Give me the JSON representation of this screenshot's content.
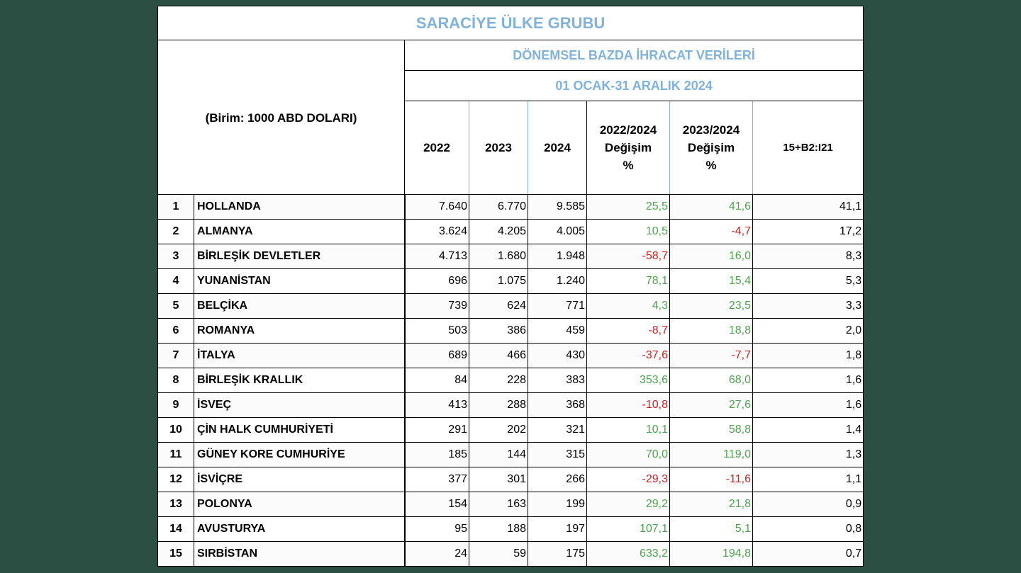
{
  "title": "SARACİYE ÜLKE GRUBU",
  "subtitle": "DÖNEMSEL BAZDA İHRACAT VERİLERİ",
  "period": "01 OCAK-31 ARALIK 2024",
  "unit": "(Birim: 1000 ABD DOLARI)",
  "columns": {
    "y2022": "2022",
    "y2023": "2023",
    "y2024": "2024",
    "chg2224_a": "2022/2024",
    "chg2224_b": "Değişim",
    "chg2224_c": "%",
    "chg2324_a": "2023/2024",
    "chg2324_b": "Değişim",
    "chg2324_c": "%",
    "last": "15+B2:I21"
  },
  "colors": {
    "background": "#2c4f43",
    "title": "#7fb2dc",
    "positive": "#4ca64c",
    "negative": "#d01f1f"
  },
  "rows": [
    {
      "rank": "1",
      "country": "HOLLANDA",
      "v2022": "7.640",
      "v2023": "6.770",
      "v2024": "9.585",
      "c1": "25,5",
      "c1s": "pos",
      "c2": "41,6",
      "c2s": "pos",
      "share": "41,1"
    },
    {
      "rank": "2",
      "country": "ALMANYA",
      "v2022": "3.624",
      "v2023": "4.205",
      "v2024": "4.005",
      "c1": "10,5",
      "c1s": "pos",
      "c2": "-4,7",
      "c2s": "neg",
      "share": "17,2"
    },
    {
      "rank": "3",
      "country": "BİRLEŞİK DEVLETLER",
      "v2022": "4.713",
      "v2023": "1.680",
      "v2024": "1.948",
      "c1": "-58,7",
      "c1s": "neg",
      "c2": "16,0",
      "c2s": "pos",
      "share": "8,3"
    },
    {
      "rank": "4",
      "country": "YUNANİSTAN",
      "v2022": "696",
      "v2023": "1.075",
      "v2024": "1.240",
      "c1": "78,1",
      "c1s": "pos",
      "c2": "15,4",
      "c2s": "pos",
      "share": "5,3"
    },
    {
      "rank": "5",
      "country": "BELÇİKA",
      "v2022": "739",
      "v2023": "624",
      "v2024": "771",
      "c1": "4,3",
      "c1s": "pos",
      "c2": "23,5",
      "c2s": "pos",
      "share": "3,3"
    },
    {
      "rank": "6",
      "country": "ROMANYA",
      "v2022": "503",
      "v2023": "386",
      "v2024": "459",
      "c1": "-8,7",
      "c1s": "neg",
      "c2": "18,8",
      "c2s": "pos",
      "share": "2,0"
    },
    {
      "rank": "7",
      "country": "İTALYA",
      "v2022": "689",
      "v2023": "466",
      "v2024": "430",
      "c1": "-37,6",
      "c1s": "neg",
      "c2": "-7,7",
      "c2s": "neg",
      "share": "1,8"
    },
    {
      "rank": "8",
      "country": "BİRLEŞİK KRALLIK",
      "v2022": "84",
      "v2023": "228",
      "v2024": "383",
      "c1": "353,6",
      "c1s": "pos",
      "c2": "68,0",
      "c2s": "pos",
      "share": "1,6"
    },
    {
      "rank": "9",
      "country": "İSVEÇ",
      "v2022": "413",
      "v2023": "288",
      "v2024": "368",
      "c1": "-10,8",
      "c1s": "neg",
      "c2": "27,6",
      "c2s": "pos",
      "share": "1,6"
    },
    {
      "rank": "10",
      "country": "ÇİN HALK CUMHURİYETİ",
      "v2022": "291",
      "v2023": "202",
      "v2024": "321",
      "c1": "10,1",
      "c1s": "pos",
      "c2": "58,8",
      "c2s": "pos",
      "share": "1,4"
    },
    {
      "rank": "11",
      "country": "GÜNEY KORE CUMHURİYE",
      "v2022": "185",
      "v2023": "144",
      "v2024": "315",
      "c1": "70,0",
      "c1s": "pos",
      "c2": "119,0",
      "c2s": "pos",
      "share": "1,3"
    },
    {
      "rank": "12",
      "country": "İSVİÇRE",
      "v2022": "377",
      "v2023": "301",
      "v2024": "266",
      "c1": "-29,3",
      "c1s": "neg",
      "c2": "-11,6",
      "c2s": "neg",
      "share": "1,1"
    },
    {
      "rank": "13",
      "country": "POLONYA",
      "v2022": "154",
      "v2023": "163",
      "v2024": "199",
      "c1": "29,2",
      "c1s": "pos",
      "c2": "21,8",
      "c2s": "pos",
      "share": "0,9"
    },
    {
      "rank": "14",
      "country": "AVUSTURYA",
      "v2022": "95",
      "v2023": "188",
      "v2024": "197",
      "c1": "107,1",
      "c1s": "pos",
      "c2": "5,1",
      "c2s": "pos",
      "share": "0,8"
    },
    {
      "rank": "15",
      "country": "SIRBİSTAN",
      "v2022": "24",
      "v2023": "59",
      "v2024": "175",
      "c1": "633,2",
      "c1s": "pos",
      "c2": "194,8",
      "c2s": "pos",
      "share": "0,7"
    }
  ]
}
